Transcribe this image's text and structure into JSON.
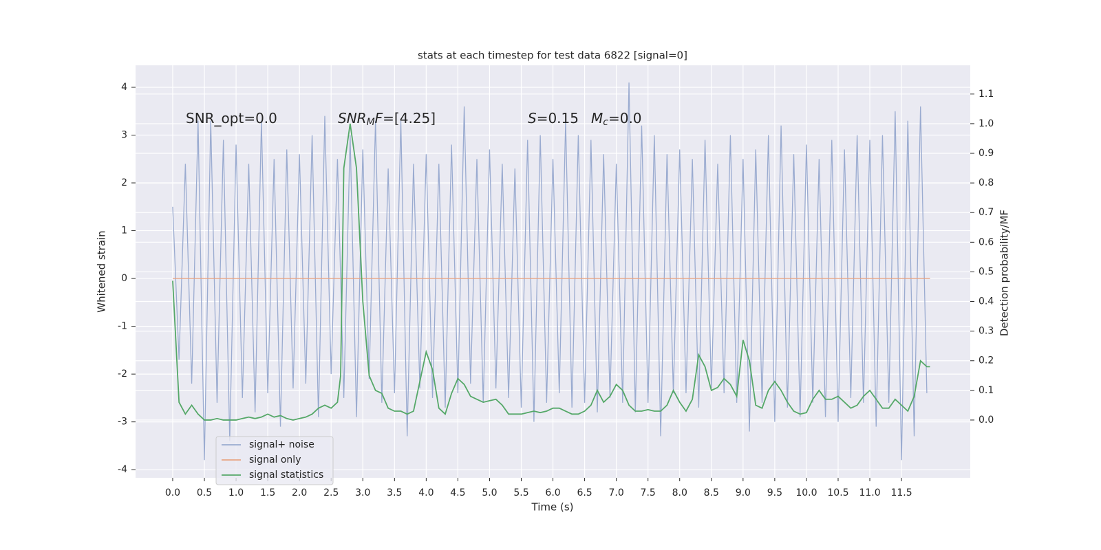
{
  "chart_data": {
    "type": "line",
    "title": "stats at each timestep for test data 6822 [signal=0]",
    "x_label": "Time (s)",
    "y_label": "Whitened strain",
    "y2_label": "Detection probability/MF",
    "xlim": [
      -0.586,
      12.585
    ],
    "ylim": [
      -4.17,
      4.46
    ],
    "y2lim": [
      -0.195,
      1.197
    ],
    "xticks": [
      {
        "value": 0,
        "label": "0.0"
      },
      0.5,
      {
        "value": 1,
        "label": "1.0"
      },
      1.5,
      {
        "value": 2,
        "label": "2.0"
      },
      2.5,
      {
        "value": 3,
        "label": "3.0"
      },
      3.5,
      {
        "value": 4,
        "label": "4.0"
      },
      4.5,
      {
        "value": 5,
        "label": "5.0"
      },
      5.5,
      {
        "value": 6,
        "label": "6.0"
      },
      6.5,
      {
        "value": 7,
        "label": "7.0"
      },
      7.5,
      {
        "value": 8,
        "label": "8.0"
      },
      8.5,
      {
        "value": 9,
        "label": "9.0"
      },
      9.5,
      {
        "value": 10,
        "label": "10.0"
      },
      10.5,
      {
        "value": 11,
        "label": "11.0"
      },
      11.5
    ],
    "yticks": [
      -4,
      -3,
      -2,
      -1,
      0,
      1,
      2,
      3,
      4
    ],
    "y2ticks": [
      {
        "value": 0,
        "label": "0.0"
      },
      0.1,
      0.2,
      0.3,
      0.4,
      0.5,
      0.6,
      0.7,
      0.8,
      0.9,
      {
        "value": 1,
        "label": "1.0"
      },
      1.1
    ],
    "grid": true,
    "background": "#eaeaf2",
    "legend": "lower left",
    "annotations": [
      {
        "parts": [
          {
            "text": "SNR_opt=0.0"
          }
        ]
      },
      {
        "parts": [
          {
            "text": "SNR",
            "italic": true
          },
          {
            "text": "M",
            "italic": true,
            "sub": true
          },
          {
            "text": "F",
            "italic": true
          },
          {
            "text": "=[4.25]"
          }
        ]
      },
      {
        "parts": [
          {
            "text": "S",
            "italic": true
          },
          {
            "text": "=0.15"
          }
        ]
      },
      {
        "parts": [
          {
            "text": "M",
            "italic": true
          },
          {
            "text": "c",
            "italic": true,
            "sub": true
          },
          {
            "text": "=0.0"
          }
        ]
      }
    ],
    "series": [
      {
        "name": "signal+ noise",
        "color": "#9aabd0",
        "axis": "y",
        "x": [
          0,
          0.1,
          0.2,
          0.3,
          0.4,
          0.5,
          0.6,
          0.7,
          0.8,
          0.9,
          1,
          1.1,
          1.2,
          1.3,
          1.4,
          1.5,
          1.6,
          1.7,
          1.8,
          1.9,
          2,
          2.1,
          2.2,
          2.3,
          2.4,
          2.5,
          2.6,
          2.7,
          2.8,
          2.9,
          3,
          3.1,
          3.2,
          3.3,
          3.4,
          3.5,
          3.6,
          3.7,
          3.8,
          3.9,
          4,
          4.1,
          4.2,
          4.3,
          4.4,
          4.5,
          4.6,
          4.7,
          4.8,
          4.9,
          5,
          5.1,
          5.2,
          5.3,
          5.4,
          5.5,
          5.6,
          5.7,
          5.8,
          5.9,
          6,
          6.1,
          6.2,
          6.3,
          6.4,
          6.5,
          6.6,
          6.7,
          6.8,
          6.9,
          7,
          7.1,
          7.2,
          7.3,
          7.4,
          7.5,
          7.6,
          7.7,
          7.8,
          7.9,
          8,
          8.1,
          8.2,
          8.3,
          8.4,
          8.5,
          8.6,
          8.7,
          8.8,
          8.9,
          9,
          9.1,
          9.2,
          9.3,
          9.4,
          9.5,
          9.6,
          9.7,
          9.8,
          9.9,
          10,
          10.1,
          10.2,
          10.3,
          10.4,
          10.5,
          10.6,
          10.7,
          10.8,
          10.9,
          11,
          11.1,
          11.2,
          11.3,
          11.4,
          11.5,
          11.6,
          11.7,
          11.8,
          11.9
        ],
        "values": [
          1.5,
          -1.7,
          2.4,
          -2.2,
          3.3,
          -3.8,
          3.3,
          -2.6,
          2.9,
          -3.4,
          2.8,
          -2.5,
          2.4,
          -2.8,
          3.3,
          -2.4,
          2.5,
          -3.1,
          2.7,
          -2.3,
          2.6,
          -2.2,
          3.0,
          -2.9,
          3.4,
          -2.0,
          2.5,
          -2.5,
          3.0,
          -2.9,
          2.7,
          -2.1,
          3.3,
          -2.6,
          2.3,
          -2.4,
          3.3,
          -3.3,
          2.4,
          -2.3,
          2.6,
          -2.5,
          2.4,
          -2.7,
          2.8,
          -2.4,
          3.6,
          -2.2,
          2.5,
          -2.6,
          2.7,
          -2.3,
          2.4,
          -2.5,
          2.3,
          -2.7,
          2.9,
          -3.0,
          3.0,
          -2.6,
          2.5,
          -2.4,
          3.3,
          -2.7,
          3.0,
          -2.6,
          2.9,
          -2.8,
          2.6,
          -2.5,
          2.4,
          -2.6,
          4.1,
          -2.8,
          3.2,
          -2.6,
          3.0,
          -3.3,
          2.6,
          -2.4,
          2.7,
          -2.4,
          2.5,
          -2.7,
          2.9,
          -2.3,
          2.4,
          -2.4,
          3.0,
          -2.6,
          2.5,
          -3.2,
          2.7,
          -2.6,
          3.0,
          -3.0,
          3.2,
          -2.7,
          2.6,
          -2.9,
          2.8,
          -2.6,
          2.5,
          -2.9,
          2.9,
          -3.0,
          2.7,
          -2.5,
          3.0,
          -2.6,
          2.9,
          -3.1,
          3.0,
          -2.6,
          3.5,
          -3.8,
          3.3,
          -3.3,
          3.6,
          -2.4
        ]
      },
      {
        "name": "signal only",
        "color": "#e8a585",
        "axis": "y",
        "x": [
          0,
          11.95
        ],
        "values": [
          0,
          0
        ]
      },
      {
        "name": "signal statistics",
        "color": "#55a868",
        "axis": "y2",
        "x": [
          0,
          0.1,
          0.2,
          0.3,
          0.4,
          0.5,
          0.6,
          0.7,
          0.8,
          0.9,
          1,
          1.1,
          1.2,
          1.3,
          1.4,
          1.5,
          1.6,
          1.7,
          1.8,
          1.9,
          2,
          2.1,
          2.2,
          2.3,
          2.4,
          2.5,
          2.6,
          2.65,
          2.7,
          2.8,
          2.9,
          3,
          3.1,
          3.2,
          3.3,
          3.4,
          3.5,
          3.6,
          3.7,
          3.8,
          3.9,
          4,
          4.1,
          4.2,
          4.3,
          4.4,
          4.5,
          4.6,
          4.7,
          4.8,
          4.9,
          5,
          5.1,
          5.2,
          5.3,
          5.4,
          5.5,
          5.6,
          5.7,
          5.8,
          5.9,
          6,
          6.1,
          6.2,
          6.3,
          6.4,
          6.5,
          6.6,
          6.7,
          6.8,
          6.9,
          7,
          7.1,
          7.2,
          7.3,
          7.4,
          7.5,
          7.6,
          7.7,
          7.8,
          7.9,
          8,
          8.1,
          8.2,
          8.3,
          8.4,
          8.5,
          8.6,
          8.7,
          8.8,
          8.9,
          9,
          9.1,
          9.2,
          9.3,
          9.4,
          9.5,
          9.6,
          9.7,
          9.8,
          9.9,
          10,
          10.1,
          10.2,
          10.3,
          10.4,
          10.5,
          10.6,
          10.7,
          10.8,
          10.9,
          11,
          11.1,
          11.2,
          11.3,
          11.4,
          11.5,
          11.6,
          11.7,
          11.8,
          11.9,
          11.95
        ],
        "values": [
          0.47,
          0.06,
          0.02,
          0.05,
          0.02,
          0,
          0,
          0.005,
          0,
          0,
          0,
          0.005,
          0.01,
          0.005,
          0.01,
          0.02,
          0.01,
          0.015,
          0.005,
          0,
          0.005,
          0.01,
          0.02,
          0.04,
          0.05,
          0.04,
          0.06,
          0.15,
          0.85,
          1.0,
          0.85,
          0.4,
          0.15,
          0.1,
          0.09,
          0.04,
          0.03,
          0.03,
          0.02,
          0.03,
          0.13,
          0.23,
          0.17,
          0.04,
          0.02,
          0.09,
          0.14,
          0.12,
          0.08,
          0.07,
          0.06,
          0.065,
          0.07,
          0.05,
          0.02,
          0.02,
          0.02,
          0.025,
          0.03,
          0.025,
          0.03,
          0.04,
          0.04,
          0.03,
          0.02,
          0.02,
          0.03,
          0.05,
          0.1,
          0.06,
          0.08,
          0.12,
          0.1,
          0.05,
          0.03,
          0.03,
          0.035,
          0.03,
          0.03,
          0.05,
          0.1,
          0.06,
          0.03,
          0.07,
          0.22,
          0.18,
          0.1,
          0.11,
          0.14,
          0.12,
          0.08,
          0.27,
          0.2,
          0.05,
          0.04,
          0.1,
          0.13,
          0.1,
          0.06,
          0.03,
          0.02,
          0.025,
          0.07,
          0.1,
          0.07,
          0.07,
          0.08,
          0.06,
          0.04,
          0.05,
          0.08,
          0.1,
          0.07,
          0.04,
          0.04,
          0.07,
          0.05,
          0.03,
          0.08,
          0.2,
          0.18,
          0.18
        ]
      }
    ]
  }
}
